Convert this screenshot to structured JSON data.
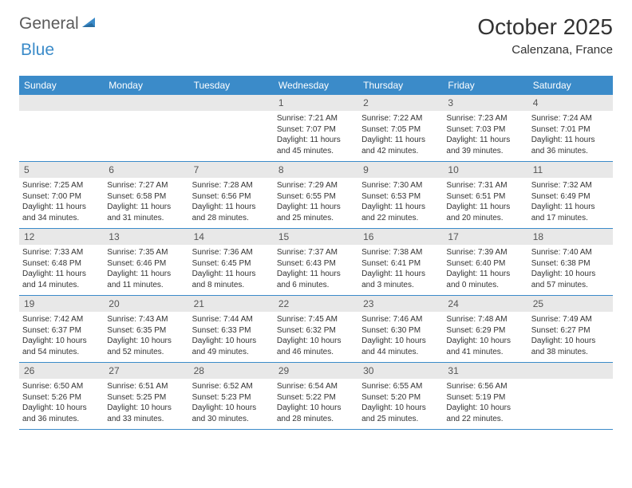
{
  "logo": {
    "text_general": "General",
    "text_blue": "Blue",
    "color_general": "#5a5a5a",
    "color_blue": "#3b8bc9",
    "icon_color": "#3b8bc9"
  },
  "header": {
    "month_title": "October 2025",
    "location": "Calenzana, France"
  },
  "colors": {
    "header_bg": "#3b8bc9",
    "header_text": "#ffffff",
    "daynum_bg": "#e8e8e8",
    "daynum_text": "#555555",
    "body_text": "#333333",
    "border": "#3b8bc9"
  },
  "day_names": [
    "Sunday",
    "Monday",
    "Tuesday",
    "Wednesday",
    "Thursday",
    "Friday",
    "Saturday"
  ],
  "weeks": [
    [
      {
        "blank": true
      },
      {
        "blank": true
      },
      {
        "blank": true
      },
      {
        "n": "1",
        "sr": "7:21 AM",
        "ss": "7:07 PM",
        "dl": "11 hours and 45 minutes."
      },
      {
        "n": "2",
        "sr": "7:22 AM",
        "ss": "7:05 PM",
        "dl": "11 hours and 42 minutes."
      },
      {
        "n": "3",
        "sr": "7:23 AM",
        "ss": "7:03 PM",
        "dl": "11 hours and 39 minutes."
      },
      {
        "n": "4",
        "sr": "7:24 AM",
        "ss": "7:01 PM",
        "dl": "11 hours and 36 minutes."
      }
    ],
    [
      {
        "n": "5",
        "sr": "7:25 AM",
        "ss": "7:00 PM",
        "dl": "11 hours and 34 minutes."
      },
      {
        "n": "6",
        "sr": "7:27 AM",
        "ss": "6:58 PM",
        "dl": "11 hours and 31 minutes."
      },
      {
        "n": "7",
        "sr": "7:28 AM",
        "ss": "6:56 PM",
        "dl": "11 hours and 28 minutes."
      },
      {
        "n": "8",
        "sr": "7:29 AM",
        "ss": "6:55 PM",
        "dl": "11 hours and 25 minutes."
      },
      {
        "n": "9",
        "sr": "7:30 AM",
        "ss": "6:53 PM",
        "dl": "11 hours and 22 minutes."
      },
      {
        "n": "10",
        "sr": "7:31 AM",
        "ss": "6:51 PM",
        "dl": "11 hours and 20 minutes."
      },
      {
        "n": "11",
        "sr": "7:32 AM",
        "ss": "6:49 PM",
        "dl": "11 hours and 17 minutes."
      }
    ],
    [
      {
        "n": "12",
        "sr": "7:33 AM",
        "ss": "6:48 PM",
        "dl": "11 hours and 14 minutes."
      },
      {
        "n": "13",
        "sr": "7:35 AM",
        "ss": "6:46 PM",
        "dl": "11 hours and 11 minutes."
      },
      {
        "n": "14",
        "sr": "7:36 AM",
        "ss": "6:45 PM",
        "dl": "11 hours and 8 minutes."
      },
      {
        "n": "15",
        "sr": "7:37 AM",
        "ss": "6:43 PM",
        "dl": "11 hours and 6 minutes."
      },
      {
        "n": "16",
        "sr": "7:38 AM",
        "ss": "6:41 PM",
        "dl": "11 hours and 3 minutes."
      },
      {
        "n": "17",
        "sr": "7:39 AM",
        "ss": "6:40 PM",
        "dl": "11 hours and 0 minutes."
      },
      {
        "n": "18",
        "sr": "7:40 AM",
        "ss": "6:38 PM",
        "dl": "10 hours and 57 minutes."
      }
    ],
    [
      {
        "n": "19",
        "sr": "7:42 AM",
        "ss": "6:37 PM",
        "dl": "10 hours and 54 minutes."
      },
      {
        "n": "20",
        "sr": "7:43 AM",
        "ss": "6:35 PM",
        "dl": "10 hours and 52 minutes."
      },
      {
        "n": "21",
        "sr": "7:44 AM",
        "ss": "6:33 PM",
        "dl": "10 hours and 49 minutes."
      },
      {
        "n": "22",
        "sr": "7:45 AM",
        "ss": "6:32 PM",
        "dl": "10 hours and 46 minutes."
      },
      {
        "n": "23",
        "sr": "7:46 AM",
        "ss": "6:30 PM",
        "dl": "10 hours and 44 minutes."
      },
      {
        "n": "24",
        "sr": "7:48 AM",
        "ss": "6:29 PM",
        "dl": "10 hours and 41 minutes."
      },
      {
        "n": "25",
        "sr": "7:49 AM",
        "ss": "6:27 PM",
        "dl": "10 hours and 38 minutes."
      }
    ],
    [
      {
        "n": "26",
        "sr": "6:50 AM",
        "ss": "5:26 PM",
        "dl": "10 hours and 36 minutes."
      },
      {
        "n": "27",
        "sr": "6:51 AM",
        "ss": "5:25 PM",
        "dl": "10 hours and 33 minutes."
      },
      {
        "n": "28",
        "sr": "6:52 AM",
        "ss": "5:23 PM",
        "dl": "10 hours and 30 minutes."
      },
      {
        "n": "29",
        "sr": "6:54 AM",
        "ss": "5:22 PM",
        "dl": "10 hours and 28 minutes."
      },
      {
        "n": "30",
        "sr": "6:55 AM",
        "ss": "5:20 PM",
        "dl": "10 hours and 25 minutes."
      },
      {
        "n": "31",
        "sr": "6:56 AM",
        "ss": "5:19 PM",
        "dl": "10 hours and 22 minutes."
      },
      {
        "blank": true
      }
    ]
  ],
  "labels": {
    "sunrise": "Sunrise: ",
    "sunset": "Sunset: ",
    "daylight": "Daylight: "
  }
}
